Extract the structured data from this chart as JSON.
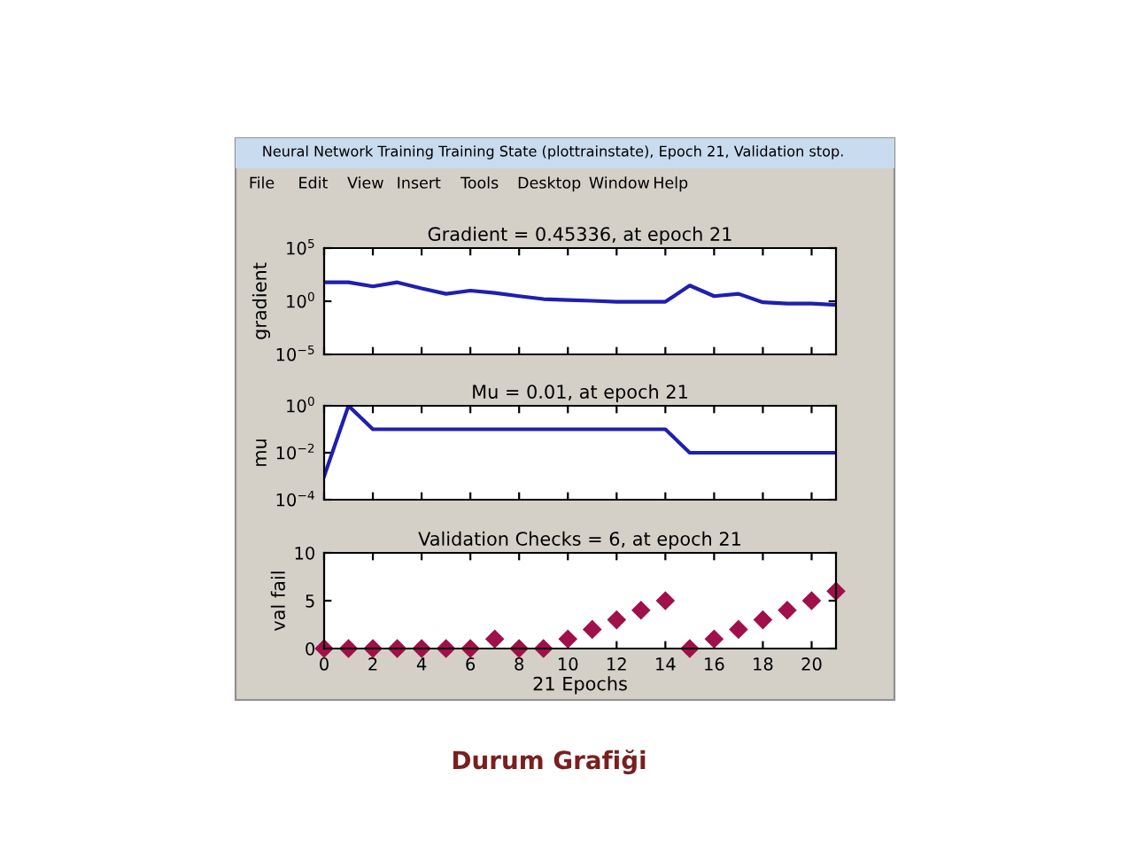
{
  "chart_data": [
    {
      "type": "other",
      "annotations": [
        "Neural Network Training Training State (plottrainstate), Epoch 21, Validation stop.",
        "File",
        "Edit",
        "View",
        "Insert",
        "Tools",
        "Desktop",
        "Window",
        "Help"
      ]
    },
    {
      "type": "line",
      "title": "Gradient = 0.45336, at epoch 21",
      "ylabel": "gradient",
      "log": "y",
      "grid": false,
      "tick_labels": "y",
      "marker": "none",
      "line_style": "solid",
      "x": [
        0,
        1,
        2,
        3,
        4,
        5,
        6,
        7,
        8,
        9,
        10,
        11,
        12,
        13,
        14,
        15,
        16,
        17,
        18,
        19,
        20,
        21
      ],
      "series": [
        {
          "color": "#1f1fb0",
          "values": [
            60,
            60,
            25,
            60,
            16,
            5,
            10,
            6,
            3,
            1.6,
            1.3,
            1.1,
            0.9,
            0.9,
            0.9,
            30,
            3,
            5,
            0.8,
            0.6,
            0.6,
            0.45336
          ]
        }
      ],
      "xlim": [
        0,
        21
      ],
      "xticks": [
        {
          "value": 0,
          "label": null
        },
        {
          "value": 2,
          "label": null
        },
        {
          "value": 4,
          "label": null
        },
        {
          "value": 6,
          "label": null
        },
        {
          "value": 8,
          "label": null
        },
        {
          "value": 10,
          "label": null
        },
        {
          "value": 12,
          "label": null
        },
        {
          "value": 14,
          "label": null
        },
        {
          "value": 16,
          "label": null
        },
        {
          "value": 18,
          "label": null
        },
        {
          "value": 20,
          "label": null
        }
      ],
      "ylim": [
        1e-05,
        100000.0
      ],
      "yticks": [
        {
          "value": 1e-05,
          "label": "10$^{−5}$"
        },
        {
          "value": 1,
          "label": "10$^{0}$"
        },
        {
          "value": 100000.0,
          "label": "10$^{5}$"
        }
      ]
    },
    {
      "type": "line",
      "title": "Mu = 0.01, at epoch 21",
      "ylabel": "mu",
      "log": "y",
      "grid": false,
      "tick_labels": "y",
      "marker": "none",
      "line_style": "solid",
      "x": [
        0,
        1,
        2,
        3,
        4,
        5,
        6,
        7,
        8,
        9,
        10,
        11,
        12,
        13,
        14,
        15,
        16,
        17,
        18,
        19,
        20,
        21
      ],
      "series": [
        {
          "color": "#1f1fb0",
          "values": [
            0.001,
            1,
            0.1,
            0.1,
            0.1,
            0.1,
            0.1,
            0.1,
            0.1,
            0.1,
            0.1,
            0.1,
            0.1,
            0.1,
            0.1,
            0.01,
            0.01,
            0.01,
            0.01,
            0.01,
            0.01,
            0.01
          ]
        }
      ],
      "xlim": [
        0,
        21
      ],
      "xticks": [
        {
          "value": 0,
          "label": null
        },
        {
          "value": 2,
          "label": null
        },
        {
          "value": 4,
          "label": null
        },
        {
          "value": 6,
          "label": null
        },
        {
          "value": 8,
          "label": null
        },
        {
          "value": 10,
          "label": null
        },
        {
          "value": 12,
          "label": null
        },
        {
          "value": 14,
          "label": null
        },
        {
          "value": 16,
          "label": null
        },
        {
          "value": 18,
          "label": null
        },
        {
          "value": 20,
          "label": null
        }
      ],
      "ylim": [
        0.0001,
        1
      ],
      "yticks": [
        {
          "value": 0.0001,
          "label": "10$^{−4}$"
        },
        {
          "value": 0.01,
          "label": "10$^{−2}$"
        },
        {
          "value": 1,
          "label": "10$^{0}$"
        }
      ]
    },
    {
      "type": "scatter",
      "title": "Validation Checks = 6, at epoch 21",
      "ylabel": "val fail",
      "xlabel": "21 Epochs",
      "grid": false,
      "marker": "diamond",
      "x": [
        0,
        1,
        2,
        3,
        4,
        5,
        6,
        7,
        8,
        9,
        10,
        11,
        12,
        13,
        14,
        15,
        16,
        17,
        18,
        19,
        20,
        21
      ],
      "series": [
        {
          "color": "#a0104a",
          "values": [
            0,
            0,
            0,
            0,
            0,
            0,
            0,
            1,
            0,
            0,
            1,
            2,
            3,
            4,
            5,
            0,
            1,
            2,
            3,
            4,
            5,
            6
          ]
        }
      ],
      "xlim": [
        0,
        21
      ],
      "xticks": [
        0,
        2,
        4,
        6,
        8,
        10,
        12,
        14,
        16,
        18,
        20
      ],
      "ylim": [
        0,
        10
      ],
      "yticks": [
        0,
        5,
        10
      ],
      "annotations": [
        "Durum Grafiği"
      ]
    }
  ]
}
